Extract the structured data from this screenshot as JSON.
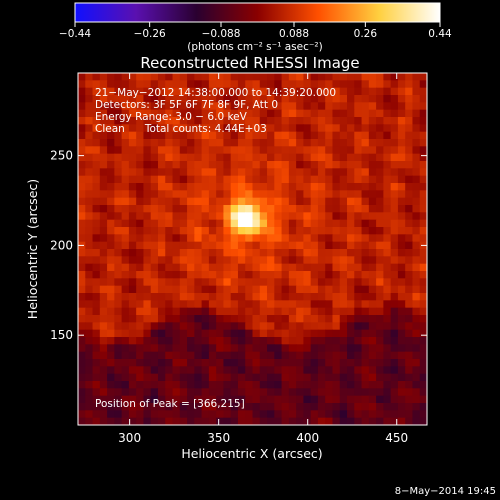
{
  "chart_data": {
    "type": "heatmap",
    "title": "Reconstructed RHESSI Image",
    "xlabel": "Heliocentric X (arcsec)",
    "ylabel": "Heliocentric Y (arcsec)",
    "xlim": [
      271,
      467
    ],
    "ylim": [
      100,
      296
    ],
    "x_ticks": [
      300,
      350,
      400,
      450
    ],
    "y_ticks": [
      150,
      200,
      250
    ],
    "colorbar": {
      "label": "(photons cm⁻² s⁻¹ asec⁻²)",
      "range": [
        -0.44,
        0.44
      ],
      "ticks": [
        -0.44,
        -0.26,
        -0.088,
        0.088,
        0.26,
        0.44
      ],
      "tick_labels": [
        "−0.44",
        "−0.26",
        "−0.088",
        "0.088",
        "0.26",
        "0.44"
      ],
      "colors": [
        "#1010ff",
        "#5a10b0",
        "#2a0030",
        "#8a0000",
        "#ff5000",
        "#ffd040",
        "#ffffff"
      ]
    },
    "annotations": [
      "21−May−2012 14:38:00.000 to 14:39:20.000",
      "Detectors: 3F 5F 6F 7F 8F 9F, Att 0",
      "Energy Range: 3.0 − 6.0 keV",
      "Clean      Total counts: 4.44E+03"
    ],
    "peak": {
      "label": "Position of Peak = [366,215]",
      "x": 366,
      "y": 215,
      "value": 0.44
    }
  },
  "timestamp": "8−May−2014 19:45"
}
